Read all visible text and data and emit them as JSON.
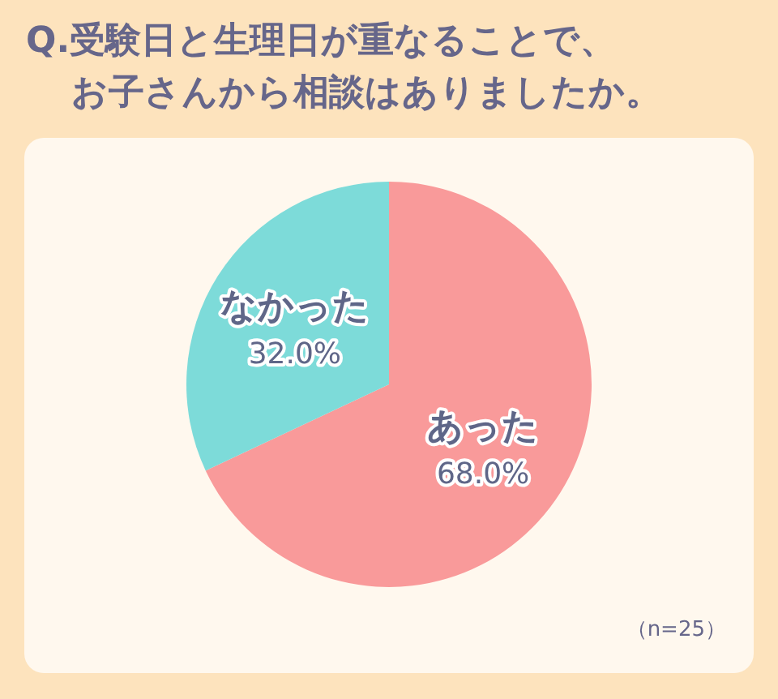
{
  "chart_data": {
    "type": "pie",
    "title": "Q.受験日と生理日が重なることで、",
    "subtitle": "お子さんから相談はありましたか。",
    "categories": [
      "あった",
      "なかった"
    ],
    "values": [
      68,
      32
    ],
    "value_labels": [
      "68.0%",
      "32.0%"
    ],
    "colors": [
      "#f99a9a",
      "#7ddbd9"
    ],
    "annotations": [
      "（n=25）"
    ]
  }
}
